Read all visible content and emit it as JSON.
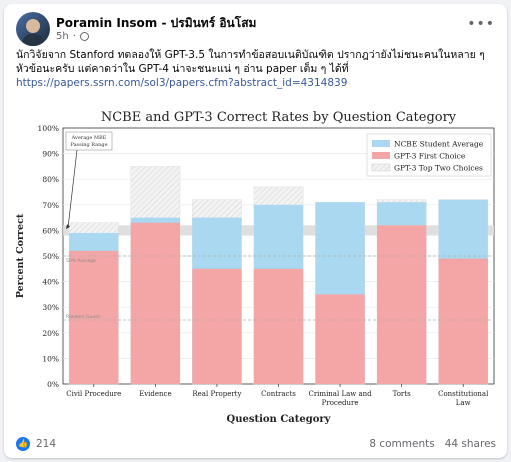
{
  "post": {
    "author": "Poramin Insom - ปรมินทร์ อินโสม",
    "time": "5h",
    "text_line1": "นักวิจัยจาก Stanford ทดลองให้ GPT-3.5 ในการทำข้อสอบเนติบัณฑิต ปรากฎว่ายังไม่ชนะคนในหลาย ๆ",
    "text_line2": "หัวข้อนะครับ แต่คาดว่าใน GPT-4 น่าจะชนะแน่ ๆ อ่าน paper เต็ม ๆ ได้ที่",
    "link": "https://papers.ssrn.com/sol3/papers.cfm?abstract_id=4314839",
    "reactions": "214",
    "comments": "8 comments",
    "shares": "44 shares",
    "more_icon": "more-dots-icon",
    "privacy_icon": "globe-icon",
    "like_icon": "like-icon"
  },
  "chart_data": {
    "type": "bar",
    "title": "NCBE and GPT-3 Correct Rates by Question Category",
    "xlabel": "Question Category",
    "ylabel": "Percent Correct",
    "ylim": [
      0,
      100
    ],
    "yticks": [
      "0%",
      "10%",
      "20%",
      "30%",
      "40%",
      "50%",
      "60%",
      "70%",
      "80%",
      "90%",
      "100%"
    ],
    "categories": [
      "Civil Procedure",
      "Evidence",
      "Real Property",
      "Contracts",
      "Criminal Law and Procedure",
      "Torts",
      "Constitutional Law"
    ],
    "series": [
      {
        "name": "NCBE Student Average",
        "color": "#a9d8f0",
        "values": [
          59,
          65,
          65,
          70,
          71,
          71,
          72
        ]
      },
      {
        "name": "GPT-3 First Choice",
        "color": "#f4a6a6",
        "values": [
          52,
          63,
          45,
          45,
          35,
          62,
          49
        ]
      },
      {
        "name": "GPT-3 Top Two Choices",
        "color": "#e6e6e6",
        "values": [
          63,
          85,
          72,
          77,
          71,
          72,
          72
        ]
      }
    ],
    "annotations": {
      "band_label": "Average MBE Passing Range",
      "band_range": [
        58,
        62
      ],
      "line_50": "50% Average",
      "line_25": "Random Guess"
    },
    "grid": true,
    "legend": "top-right"
  }
}
